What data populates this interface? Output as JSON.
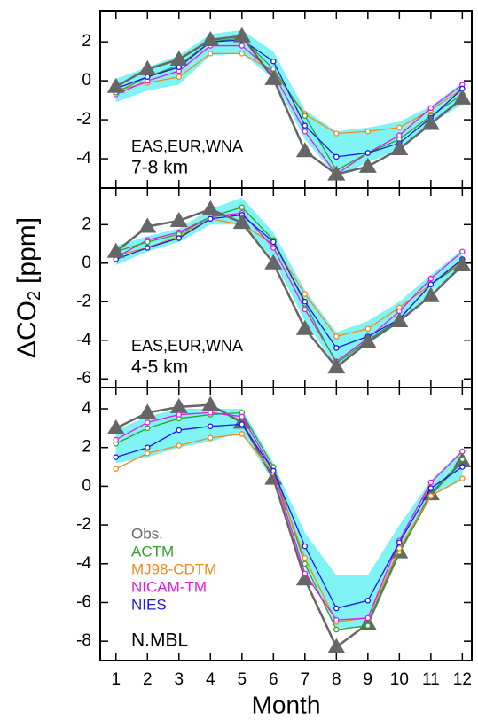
{
  "chart_data": [
    {
      "type": "line",
      "annotations": [
        "EAS,EUR,WNA",
        "7-8 km"
      ],
      "x": [
        1,
        2,
        3,
        4,
        5,
        6,
        7,
        8,
        9,
        10,
        11,
        12
      ],
      "xlim": [
        0.5,
        12.3
      ],
      "xticks": [
        1,
        2,
        3,
        4,
        5,
        6,
        7,
        8,
        9,
        10,
        11,
        12
      ],
      "ylim": [
        -5.5,
        3.6
      ],
      "yticks": [
        -4,
        -2,
        0,
        2
      ],
      "band": {
        "color": "#80f4f4",
        "lower": [
          -1.1,
          -0.5,
          -0.2,
          1.3,
          1.4,
          0.1,
          -3.0,
          -4.9,
          -4.2,
          -3.5,
          -2.2,
          -1.2
        ],
        "upper": [
          0.1,
          0.7,
          1.3,
          2.4,
          2.6,
          1.5,
          -1.5,
          -2.6,
          -2.4,
          -2.1,
          -1.3,
          -0.1
        ]
      },
      "series": [
        {
          "color": "#f08a1c",
          "values": [
            -0.5,
            -0.1,
            0.2,
            1.4,
            1.4,
            0.5,
            -1.7,
            -2.7,
            -2.6,
            -2.4,
            -1.5,
            -0.4
          ]
        },
        {
          "color": "#e617e6",
          "values": [
            -0.7,
            0.0,
            0.5,
            1.8,
            1.8,
            0.4,
            -2.6,
            -4.8,
            -3.7,
            -2.8,
            -1.4,
            -0.2
          ]
        },
        {
          "color": "#2ea22e",
          "values": [
            -0.6,
            0.2,
            0.8,
            2.0,
            2.2,
            0.6,
            -1.8,
            -4.6,
            -3.7,
            -3.0,
            -1.8,
            -0.7
          ]
        },
        {
          "color": "#1a1ae6",
          "values": [
            -0.4,
            0.2,
            0.7,
            2.0,
            2.1,
            1.0,
            -2.3,
            -3.9,
            -3.7,
            -3.2,
            -1.9,
            -0.4
          ]
        },
        {
          "color": "#666666",
          "marker": "triangle",
          "values": [
            -0.3,
            0.6,
            1.1,
            2.1,
            2.3,
            0.1,
            -3.6,
            -4.8,
            -4.4,
            -3.5,
            -2.2,
            -0.9
          ]
        }
      ]
    },
    {
      "type": "line",
      "annotations": [
        "EAS,EUR,WNA",
        "4-5 km"
      ],
      "ylabel": [
        "ΔCO",
        "2",
        "[ppm]"
      ],
      "x": [
        1,
        2,
        3,
        4,
        5,
        6,
        7,
        8,
        9,
        10,
        11,
        12
      ],
      "xlim": [
        0.5,
        12.3
      ],
      "xticks": [
        1,
        2,
        3,
        4,
        5,
        6,
        7,
        8,
        9,
        10,
        11,
        12
      ],
      "ylim": [
        -6.45,
        3.9
      ],
      "yticks": [
        -6,
        -4,
        -2,
        0,
        2
      ],
      "band": {
        "color": "#80f4f4",
        "lower": [
          -0.1,
          0.6,
          1.1,
          2.0,
          2.0,
          0.2,
          -3.0,
          -5.4,
          -4.2,
          -3.1,
          -1.5,
          -0.3
        ],
        "upper": [
          0.9,
          1.4,
          1.8,
          2.8,
          3.4,
          1.6,
          -1.4,
          -3.6,
          -3.0,
          -2.0,
          -0.6,
          0.7
        ]
      },
      "series": [
        {
          "color": "#f08a1c",
          "values": [
            0.4,
            0.8,
            1.4,
            2.3,
            2.0,
            1.0,
            -1.6,
            -3.8,
            -3.4,
            -2.3,
            -1.1,
            0.1
          ]
        },
        {
          "color": "#e617e6",
          "values": [
            0.3,
            1.2,
            1.6,
            2.4,
            2.6,
            0.8,
            -2.4,
            -5.1,
            -3.9,
            -2.5,
            -0.8,
            0.6
          ]
        },
        {
          "color": "#2ea22e",
          "values": [
            0.6,
            1.1,
            1.5,
            2.4,
            2.9,
            1.2,
            -2.1,
            -5.2,
            -4.0,
            -2.9,
            -1.1,
            0.0
          ]
        },
        {
          "color": "#1a1ae6",
          "values": [
            0.2,
            0.8,
            1.3,
            2.3,
            2.5,
            1.1,
            -2.0,
            -4.4,
            -3.8,
            -2.9,
            -1.1,
            0.2
          ]
        },
        {
          "color": "#666666",
          "marker": "triangle",
          "values": [
            0.6,
            1.9,
            2.2,
            2.8,
            2.1,
            0.0,
            -3.4,
            -5.4,
            -4.1,
            -3.0,
            -1.7,
            -0.1
          ]
        }
      ]
    },
    {
      "type": "line",
      "annotations": [
        "N.MBL"
      ],
      "xlabel": "Month",
      "show_xtick_labels": true,
      "x": [
        1,
        2,
        3,
        4,
        5,
        6,
        7,
        8,
        9,
        10,
        11,
        12
      ],
      "xlim": [
        0.5,
        12.3
      ],
      "xticks": [
        1,
        2,
        3,
        4,
        5,
        6,
        7,
        8,
        9,
        10,
        11,
        12
      ],
      "ylim": [
        -9.0,
        5.1
      ],
      "yticks": [
        -8,
        -6,
        -4,
        -2,
        0,
        2,
        4
      ],
      "band": {
        "color": "#80f4f4",
        "lower": [
          1.2,
          1.5,
          2.0,
          2.3,
          2.8,
          0.2,
          -4.2,
          -7.3,
          -7.3,
          -3.3,
          -0.5,
          0.3
        ],
        "upper": [
          2.9,
          3.6,
          4.0,
          4.0,
          4.0,
          1.2,
          -2.4,
          -4.6,
          -4.6,
          -2.0,
          0.3,
          1.9
        ]
      },
      "legend": [
        0,
        1,
        2,
        3,
        4
      ],
      "series": [
        {
          "name": "Obs.",
          "color": "#666666",
          "marker": "triangle",
          "values": [
            3.0,
            3.8,
            4.1,
            4.2,
            3.3,
            0.4,
            -4.8,
            -8.3,
            -7.1,
            -3.4,
            -0.4,
            1.3
          ]
        },
        {
          "name": "ACTM",
          "color": "#2ea22e",
          "values": [
            2.2,
            3.0,
            3.5,
            3.7,
            3.8,
            1.0,
            -4.0,
            -7.4,
            -7.2,
            -3.4,
            -0.5,
            1.4
          ]
        },
        {
          "name": "MJ98-CDTM",
          "color": "#f08a1c",
          "values": [
            0.9,
            1.7,
            2.1,
            2.5,
            2.7,
            0.7,
            -3.7,
            -7.0,
            -6.8,
            -3.2,
            -0.5,
            0.4
          ]
        },
        {
          "name": "NICAM-TM",
          "color": "#e617e6",
          "values": [
            2.4,
            3.3,
            3.7,
            3.8,
            3.6,
            0.8,
            -4.5,
            -6.9,
            -6.8,
            -2.8,
            0.2,
            1.8
          ]
        },
        {
          "name": "NIES",
          "color": "#1a1ae6",
          "values": [
            1.5,
            2.0,
            2.9,
            3.1,
            3.2,
            0.8,
            -3.1,
            -6.3,
            -5.9,
            -2.9,
            -0.1,
            1.0
          ]
        }
      ]
    }
  ]
}
